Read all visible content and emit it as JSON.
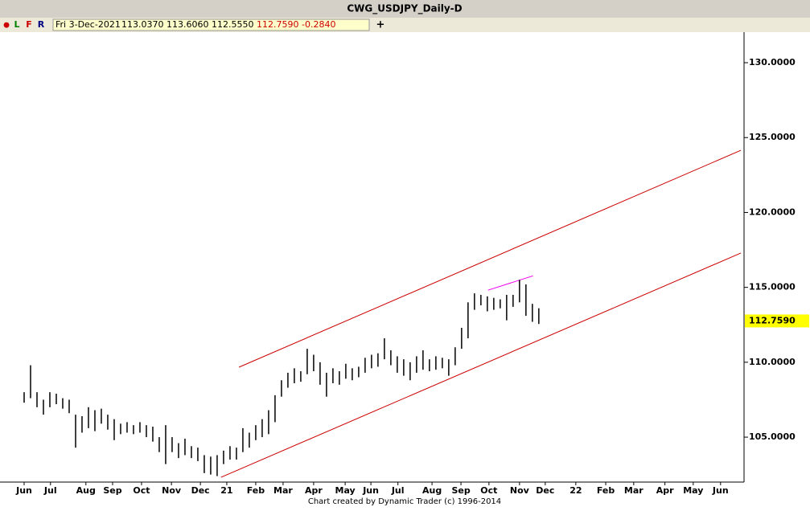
{
  "chart_data": {
    "type": "ohlc",
    "title": "CWG_USDJPY_Daily-D",
    "toolbar": {
      "dot": "●",
      "buttons": [
        "L",
        "F",
        "R"
      ],
      "date": "Fri 3-Dec-2021",
      "open": {
        "value": 113.037,
        "label": "113.0370"
      },
      "high": {
        "value": 113.606,
        "label": "113.6060"
      },
      "low": {
        "value": 112.555,
        "label": "112.5550"
      },
      "close": {
        "value": 112.759,
        "label": "112.7590"
      },
      "change": {
        "value": -0.284,
        "label": "-0.2840"
      },
      "plus": "+"
    },
    "footer": "Chart created by Dynamic Trader  (c) 1996-2014",
    "color": "#000000",
    "x": [
      0,
      1,
      2,
      3,
      4,
      5,
      6,
      7,
      8,
      9,
      10,
      11,
      12,
      13,
      14,
      15,
      16,
      17,
      18,
      19,
      20,
      21,
      22,
      23,
      24,
      25,
      26,
      27,
      28,
      29,
      30,
      31,
      32,
      33,
      34,
      35,
      36,
      37,
      38,
      39,
      40,
      41,
      42,
      43,
      44,
      45,
      46,
      47,
      48,
      49,
      50,
      51,
      52,
      53,
      54,
      55,
      56,
      57,
      58,
      59,
      60,
      61,
      62,
      63,
      64,
      65,
      66,
      67,
      68,
      69,
      70,
      71,
      72,
      73,
      74,
      75,
      76,
      77,
      78,
      79,
      80
    ],
    "high": [
      108.0,
      109.8,
      108.0,
      107.5,
      108.0,
      107.9,
      107.6,
      107.5,
      106.5,
      106.4,
      107.0,
      106.8,
      106.9,
      106.5,
      106.2,
      105.9,
      106.0,
      105.8,
      106.0,
      105.8,
      105.7,
      105.0,
      105.8,
      105.0,
      104.6,
      104.9,
      104.4,
      104.3,
      103.8,
      103.7,
      103.8,
      104.1,
      104.4,
      104.3,
      105.6,
      105.3,
      105.8,
      106.2,
      106.8,
      107.8,
      108.8,
      109.3,
      109.6,
      109.4,
      110.9,
      110.5,
      110.0,
      109.3,
      109.6,
      109.4,
      109.9,
      109.6,
      109.7,
      110.3,
      110.5,
      110.6,
      111.6,
      110.8,
      110.4,
      110.2,
      110.0,
      110.4,
      110.8,
      110.2,
      110.4,
      110.3,
      110.2,
      111.0,
      112.3,
      114.0,
      114.6,
      114.5,
      114.4,
      114.3,
      114.2,
      114.5,
      114.5,
      115.5,
      115.2,
      113.9,
      113.606
    ],
    "low": [
      107.3,
      107.6,
      107.0,
      106.5,
      107.0,
      107.2,
      106.9,
      106.6,
      104.3,
      105.3,
      105.6,
      105.4,
      105.9,
      105.5,
      104.8,
      105.2,
      105.3,
      105.2,
      105.3,
      105.0,
      104.7,
      104.0,
      103.2,
      104.0,
      103.6,
      103.8,
      103.6,
      103.4,
      102.6,
      102.5,
      102.4,
      103.2,
      103.5,
      103.5,
      104.0,
      104.3,
      104.8,
      105.0,
      105.2,
      106.0,
      107.7,
      108.3,
      108.6,
      108.7,
      109.2,
      109.4,
      108.5,
      107.7,
      108.6,
      108.5,
      108.9,
      108.8,
      109.0,
      109.3,
      109.6,
      109.7,
      110.2,
      109.8,
      109.3,
      109.1,
      108.8,
      109.3,
      109.5,
      109.4,
      109.5,
      109.6,
      109.1,
      109.8,
      110.9,
      111.6,
      113.5,
      113.8,
      113.4,
      113.5,
      113.6,
      112.8,
      113.7,
      114.0,
      113.1,
      112.7,
      112.555
    ],
    "xlim": [
      -3.75,
      111.9
    ],
    "xticks": [
      {
        "value": 0,
        "label": "Jun"
      },
      {
        "value": 4.1,
        "label": "Jul"
      },
      {
        "value": 9.6,
        "label": "Aug"
      },
      {
        "value": 13.75,
        "label": "Sep"
      },
      {
        "value": 18.25,
        "label": "Oct"
      },
      {
        "value": 22.9,
        "label": "Nov"
      },
      {
        "value": 27.4,
        "label": "Dec"
      },
      {
        "value": 31.5,
        "label": "21"
      },
      {
        "value": 36,
        "label": "Feb"
      },
      {
        "value": 40.25,
        "label": "Mar"
      },
      {
        "value": 45,
        "label": "Apr"
      },
      {
        "value": 49.9,
        "label": "May"
      },
      {
        "value": 53.9,
        "label": "Jun"
      },
      {
        "value": 58.1,
        "label": "Jul"
      },
      {
        "value": 63.4,
        "label": "Aug"
      },
      {
        "value": 67.9,
        "label": "Sep"
      },
      {
        "value": 72.25,
        "label": "Oct"
      },
      {
        "value": 77,
        "label": "Nov"
      },
      {
        "value": 81,
        "label": "Dec"
      },
      {
        "value": 85.75,
        "label": "22"
      },
      {
        "value": 90.4,
        "label": "Feb"
      },
      {
        "value": 94.75,
        "label": "Mar"
      },
      {
        "value": 99.6,
        "label": "Apr"
      },
      {
        "value": 104,
        "label": "May"
      },
      {
        "value": 108.25,
        "label": "Jun"
      }
    ],
    "ylim": [
      102.0,
      132.04
    ],
    "yticks": [
      {
        "value": 105,
        "label": "105.0000"
      },
      {
        "value": 110,
        "label": "110.0000"
      },
      {
        "value": 115,
        "label": "115.0000"
      },
      {
        "value": 120,
        "label": "120.0000"
      },
      {
        "value": 125,
        "label": "125.0000"
      },
      {
        "value": 130,
        "label": "130.0000"
      }
    ],
    "last_price": {
      "value": 112.759,
      "label": "112.7590",
      "color": "#ffff00"
    },
    "trendlines": [
      {
        "color": "#cc0000",
        "x": [
          33.4,
          111.4
        ],
        "y": [
          109.67,
          124.15
        ]
      },
      {
        "color": "#cc0000",
        "x": [
          30.6,
          111.4
        ],
        "y": [
          102.32,
          117.29
        ]
      },
      {
        "color": "#ee00ee",
        "x": [
          72.1,
          79.1
        ],
        "y": [
          114.81,
          115.77
        ]
      }
    ]
  }
}
